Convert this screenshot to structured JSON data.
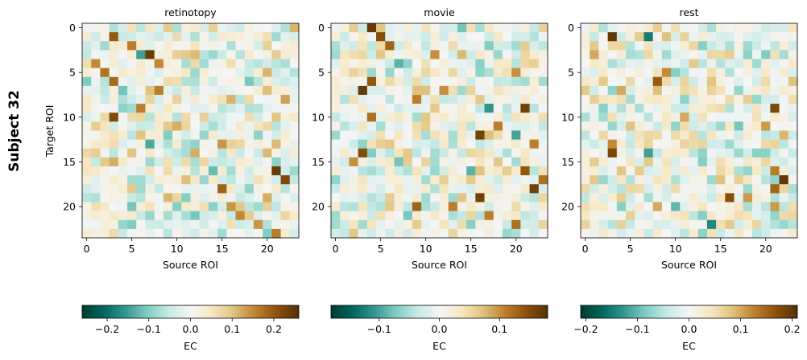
{
  "figure": {
    "suptitle": "Subject 32",
    "ylabel": "Target ROI"
  },
  "chart_data": [
    {
      "type": "heatmap",
      "title": "retinotopy",
      "xlabel": "Source ROI",
      "ylabel": "Target ROI",
      "size": 24,
      "xticks": [
        0,
        5,
        10,
        15,
        20
      ],
      "yticks": [
        0,
        5,
        10,
        15,
        20
      ],
      "colorbar": {
        "label": "EC",
        "range": [
          -0.26,
          0.26
        ],
        "ticks": [
          -0.2,
          -0.1,
          0.0,
          0.1,
          0.2
        ],
        "tick_labels": [
          "−0.2",
          "−0.1",
          "0.0",
          "0.1",
          "0.2"
        ]
      },
      "strong_cells": [
        [
          3,
          7,
          0.24
        ],
        [
          10,
          3,
          0.22
        ],
        [
          6,
          3,
          0.18
        ],
        [
          7,
          8,
          0.16
        ],
        [
          5,
          2,
          0.17
        ],
        [
          2,
          5,
          0.16
        ],
        [
          4,
          1,
          0.15
        ],
        [
          1,
          3,
          0.2
        ],
        [
          4,
          8,
          0.15
        ],
        [
          9,
          6,
          0.16
        ],
        [
          11,
          10,
          0.12
        ],
        [
          13,
          15,
          0.14
        ],
        [
          12,
          6,
          0.1
        ],
        [
          14,
          12,
          0.12
        ],
        [
          16,
          21,
          0.24
        ],
        [
          18,
          15,
          0.19
        ],
        [
          17,
          22,
          0.22
        ],
        [
          20,
          16,
          0.14
        ],
        [
          21,
          17,
          0.15
        ],
        [
          19,
          20,
          0.12
        ],
        [
          22,
          19,
          0.14
        ],
        [
          23,
          21,
          0.16
        ],
        [
          15,
          3,
          0.12
        ],
        [
          8,
          22,
          0.13
        ],
        [
          13,
          21,
          0.11
        ],
        [
          3,
          6,
          -0.15
        ],
        [
          13,
          7,
          -0.14
        ],
        [
          16,
          14,
          -0.12
        ],
        [
          21,
          12,
          -0.11
        ],
        [
          10,
          21,
          0.1
        ],
        [
          14,
          20,
          0.11
        ]
      ]
    },
    {
      "type": "heatmap",
      "title": "movie",
      "xlabel": "Source ROI",
      "ylabel": "",
      "size": 24,
      "xticks": [
        0,
        5,
        10,
        15,
        20
      ],
      "yticks": [
        0,
        5,
        10,
        15,
        20
      ],
      "colorbar": {
        "label": "EC",
        "range": [
          -0.18,
          0.18
        ],
        "ticks": [
          -0.1,
          0.0,
          0.1
        ],
        "tick_labels": [
          "−0.1",
          "0.0",
          "0.1"
        ]
      },
      "strong_cells": [
        [
          0,
          4,
          0.17
        ],
        [
          1,
          5,
          0.15
        ],
        [
          2,
          6,
          0.13
        ],
        [
          7,
          3,
          0.17
        ],
        [
          6,
          4,
          0.14
        ],
        [
          8,
          9,
          0.11
        ],
        [
          10,
          4,
          0.12
        ],
        [
          9,
          21,
          0.16
        ],
        [
          12,
          16,
          0.16
        ],
        [
          11,
          18,
          0.11
        ],
        [
          14,
          3,
          0.15
        ],
        [
          13,
          22,
          0.11
        ],
        [
          16,
          21,
          0.14
        ],
        [
          18,
          22,
          0.16
        ],
        [
          19,
          16,
          0.16
        ],
        [
          20,
          9,
          0.13
        ],
        [
          17,
          23,
          0.12
        ],
        [
          20,
          13,
          0.11
        ],
        [
          21,
          17,
          0.11
        ],
        [
          22,
          20,
          0.12
        ],
        [
          15,
          2,
          0.1
        ],
        [
          5,
          20,
          0.1
        ],
        [
          3,
          11,
          0.1
        ],
        [
          7,
          12,
          0.1
        ],
        [
          9,
          17,
          -0.11
        ],
        [
          12,
          20,
          -0.1
        ],
        [
          4,
          7,
          -0.09
        ],
        [
          16,
          15,
          -0.09
        ]
      ]
    },
    {
      "type": "heatmap",
      "title": "rest",
      "xlabel": "Source ROI",
      "ylabel": "",
      "size": 24,
      "xticks": [
        0,
        5,
        10,
        15,
        20
      ],
      "yticks": [
        0,
        5,
        10,
        15,
        20
      ],
      "colorbar": {
        "label": "EC",
        "range": [
          -0.21,
          0.21
        ],
        "ticks": [
          -0.2,
          -0.1,
          0.0,
          0.1,
          0.2
        ],
        "tick_labels": [
          "−0.2",
          "−0.1",
          "0.0",
          "0.1",
          "0.2"
        ]
      },
      "strong_cells": [
        [
          1,
          3,
          0.2
        ],
        [
          14,
          3,
          0.18
        ],
        [
          9,
          21,
          0.18
        ],
        [
          17,
          22,
          0.2
        ],
        [
          18,
          21,
          0.15
        ],
        [
          19,
          16,
          0.17
        ],
        [
          6,
          8,
          0.16
        ],
        [
          5,
          9,
          0.12
        ],
        [
          13,
          3,
          0.12
        ],
        [
          11,
          20,
          0.11
        ],
        [
          20,
          21,
          0.11
        ],
        [
          16,
          21,
          0.13
        ],
        [
          19,
          18,
          0.11
        ],
        [
          20,
          8,
          0.1
        ],
        [
          7,
          4,
          0.1
        ],
        [
          3,
          1,
          0.1
        ],
        [
          10,
          11,
          0.1
        ],
        [
          1,
          7,
          -0.15
        ],
        [
          14,
          7,
          -0.12
        ],
        [
          22,
          14,
          -0.14
        ],
        [
          20,
          10,
          -0.1
        ],
        [
          5,
          10,
          -0.08
        ]
      ]
    }
  ]
}
